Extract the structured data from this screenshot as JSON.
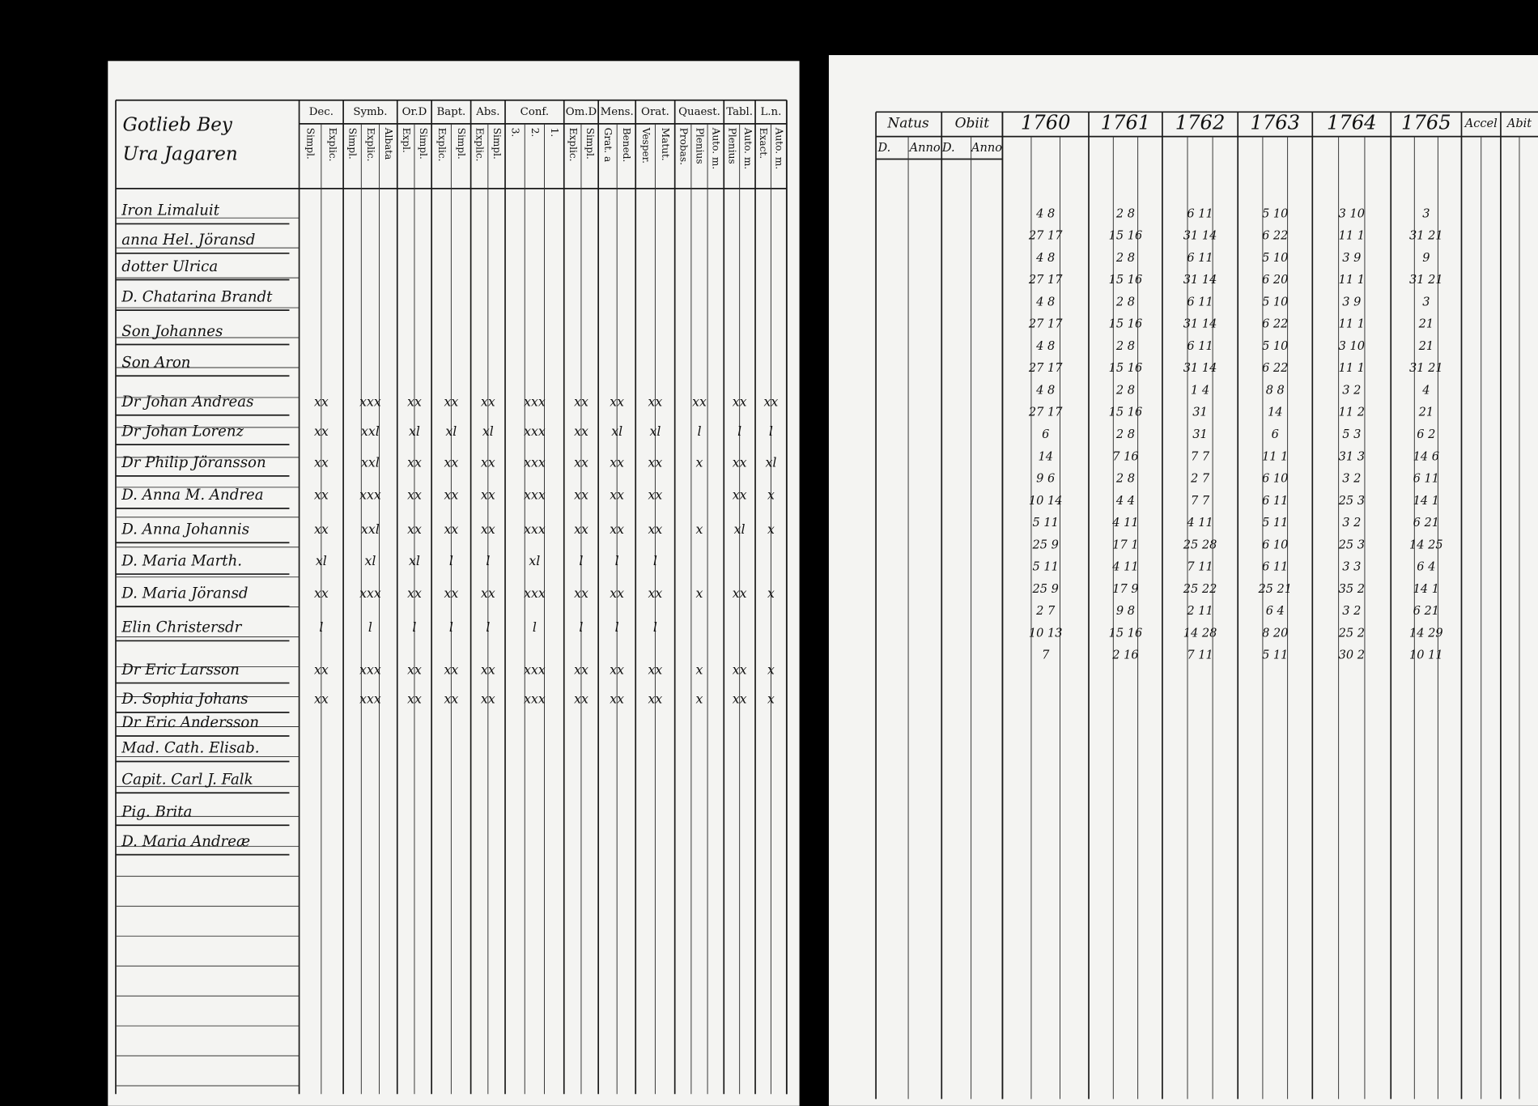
{
  "left_page": {
    "title": [
      "Gotlieb Bey",
      "Ura Jagaren"
    ],
    "columns": [
      {
        "label": "Dec.",
        "sub": [
          "Simpl.",
          "Explic."
        ]
      },
      {
        "label": "Symb.",
        "sub": [
          "Simpl.",
          "Explic.",
          "Albata"
        ]
      },
      {
        "label": "Or.D",
        "sub": [
          "Expl.",
          "Simpl."
        ]
      },
      {
        "label": "Bapt.",
        "sub": [
          "Explic.",
          "Simpl."
        ]
      },
      {
        "label": "Abs.",
        "sub": [
          "Explic.",
          "Simpl."
        ]
      },
      {
        "label": "Conf.",
        "sub": [
          "3.",
          "2.",
          "1."
        ]
      },
      {
        "label": "Om.D",
        "sub": [
          "Explic.",
          "Simpl."
        ]
      },
      {
        "label": "Mens.",
        "sub": [
          "Grat. a",
          "Bened."
        ]
      },
      {
        "label": "Orat.",
        "sub": [
          "Vesper.",
          "Matut."
        ]
      },
      {
        "label": "Quaest.",
        "sub": [
          "Probas.",
          "Plenius",
          "Auto. m."
        ]
      },
      {
        "label": "Tabl.",
        "sub": [
          "Plenius",
          "Auto. m."
        ]
      },
      {
        "label": "L.n.",
        "sub": [
          "Exact.",
          "Auto. m."
        ]
      }
    ],
    "rows": [
      {
        "name": "Iron Limaluit"
      },
      {
        "name": "anna Hel. Jöransd"
      },
      {
        "name": "dotter Ulrica"
      },
      {
        "name": "D. Chatarina Brandt"
      },
      {
        "name": "Son Johannes"
      },
      {
        "name": "Son Aron"
      },
      {
        "name": "Dr Johan Andreas",
        "marks": [
          "xx",
          "xxx",
          "xx",
          "xx",
          "xx",
          "xxx",
          "xx",
          "xx",
          "xx",
          "xx",
          "xx",
          "xx"
        ]
      },
      {
        "name": "Dr Johan Lorenz",
        "marks": [
          "xx",
          "xxl",
          "xl",
          "xl",
          "xl",
          "xxx",
          "xx",
          "xl",
          "xl",
          "l",
          "l",
          "l"
        ]
      },
      {
        "name": "Dr Philip Jöransson",
        "marks": [
          "xx",
          "xxl",
          "xx",
          "xx",
          "xx",
          "xxx",
          "xx",
          "xx",
          "xx",
          "x",
          "xx",
          "xl"
        ]
      },
      {
        "name": "D. Anna M. Andrea",
        "marks": [
          "xx",
          "xxx",
          "xx",
          "xx",
          "xx",
          "xxx",
          "xx",
          "xx",
          "xx",
          null,
          "xx",
          "x"
        ]
      },
      {
        "name": "D. Anna Johannis",
        "marks": [
          "xx",
          "xxl",
          "xx",
          "xx",
          "xx",
          "xxx",
          "xx",
          "xx",
          "xx",
          "x",
          "xl",
          "x"
        ]
      },
      {
        "name": "D. Maria Marth.",
        "marks": [
          "xl",
          "xl",
          "xl",
          "l",
          "l",
          "xl",
          "l",
          "l",
          "l",
          null,
          null,
          null
        ]
      },
      {
        "name": "D. Maria Jöransd",
        "marks": [
          "xx",
          "xxx",
          "xx",
          "xx",
          "xx",
          "xxx",
          "xx",
          "xx",
          "xx",
          "x",
          "xx",
          "x"
        ]
      },
      {
        "name": "Elin Christersdr",
        "marks": [
          "l",
          "l",
          "l",
          "l",
          "l",
          "l",
          "l",
          "l",
          "l",
          null,
          null,
          null
        ]
      },
      {
        "name": "Dr Eric Larsson",
        "marks": [
          "xx",
          "xxx",
          "xx",
          "xx",
          "xx",
          "xxx",
          "xx",
          "xx",
          "xx",
          "x",
          "xx",
          "x"
        ]
      },
      {
        "name": "D. Sophia Johans",
        "marks": [
          "xx",
          "xxx",
          "xx",
          "xx",
          "xx",
          "xxx",
          "xx",
          "xx",
          "xx",
          "x",
          "xx",
          "x"
        ]
      },
      {
        "name": "Dr Eric Andersson"
      },
      {
        "name": "Mad. Cath. Elisab."
      },
      {
        "name": "Capit. Carl J. Falk"
      },
      {
        "name": "Pig. Brita"
      },
      {
        "name": "D. Maria Andreæ"
      }
    ]
  },
  "right_page": {
    "natus": {
      "label": "Natus",
      "sub": [
        "D.",
        "Anno"
      ]
    },
    "obiit": {
      "label": "Obiit",
      "sub": [
        "D.",
        "Anno"
      ]
    },
    "years": [
      "1760",
      "1761",
      "1762",
      "1763",
      "1764",
      "1765"
    ],
    "accel": "Accel",
    "abit": "Abit",
    "entries": [
      [
        "4 8",
        "2 8",
        "6 11",
        "5 10",
        "3 10",
        "3"
      ],
      [
        "27 17",
        "15 16",
        "31 14",
        "6 22",
        "11 1",
        "31 21"
      ],
      [
        "4 8",
        "2 8",
        "6 11",
        "5 10",
        "3 9",
        "9"
      ],
      [
        "27 17",
        "15 16",
        "31 14",
        "6 20",
        "11 1",
        "31 21"
      ],
      [
        "4 8",
        "2 8",
        "6 11",
        "5 10",
        "3 9",
        "3"
      ],
      [
        "27 17",
        "15 16",
        "31 14",
        "6 22",
        "11 1",
        "21"
      ],
      [
        "4 8",
        "2 8",
        "6 11",
        "5 10",
        "3 10",
        "21"
      ],
      [
        "27 17",
        "15 16",
        "31 14",
        "6 22",
        "11 1",
        "31 21"
      ],
      [
        "4 8",
        "2 8",
        "1 4",
        "8 8",
        "3 2",
        "4"
      ],
      [
        "27 17",
        "15 16",
        "31",
        "14",
        "11 2",
        "21"
      ],
      [
        "6",
        "2 8",
        "31",
        "6",
        "5 3",
        "6 2"
      ],
      [
        "14",
        "7 16",
        "7 7",
        "11 1",
        "31 3",
        "14 6"
      ],
      [
        "9 6",
        "2 8",
        "2 7",
        "6 10",
        "3 2",
        "6 11"
      ],
      [
        "10 14",
        "4 4",
        "7 7",
        "6 11",
        "25 3",
        "14 1"
      ],
      [
        "5 11",
        "4 11",
        "4 11",
        "5 11",
        "3 2",
        "6 21"
      ],
      [
        "25 9",
        "17 1",
        "25 28",
        "6 10",
        "25 3",
        "14 25"
      ],
      [
        "5 11",
        "4 11",
        "7 11",
        "6 11",
        "3 3",
        "6 4"
      ],
      [
        "25 9",
        "17 9",
        "25 22",
        "25 21",
        "35 2",
        "14 1"
      ],
      [
        "2 7",
        "9 8",
        "2 11",
        "6 4",
        "3 2",
        "6 21"
      ],
      [
        "10 13",
        "15 16",
        "14 28",
        "8 20",
        "25 2",
        "14 29"
      ],
      [
        "7",
        "2 16",
        "7 11",
        "5 11",
        "30 2",
        "10 11"
      ]
    ]
  }
}
